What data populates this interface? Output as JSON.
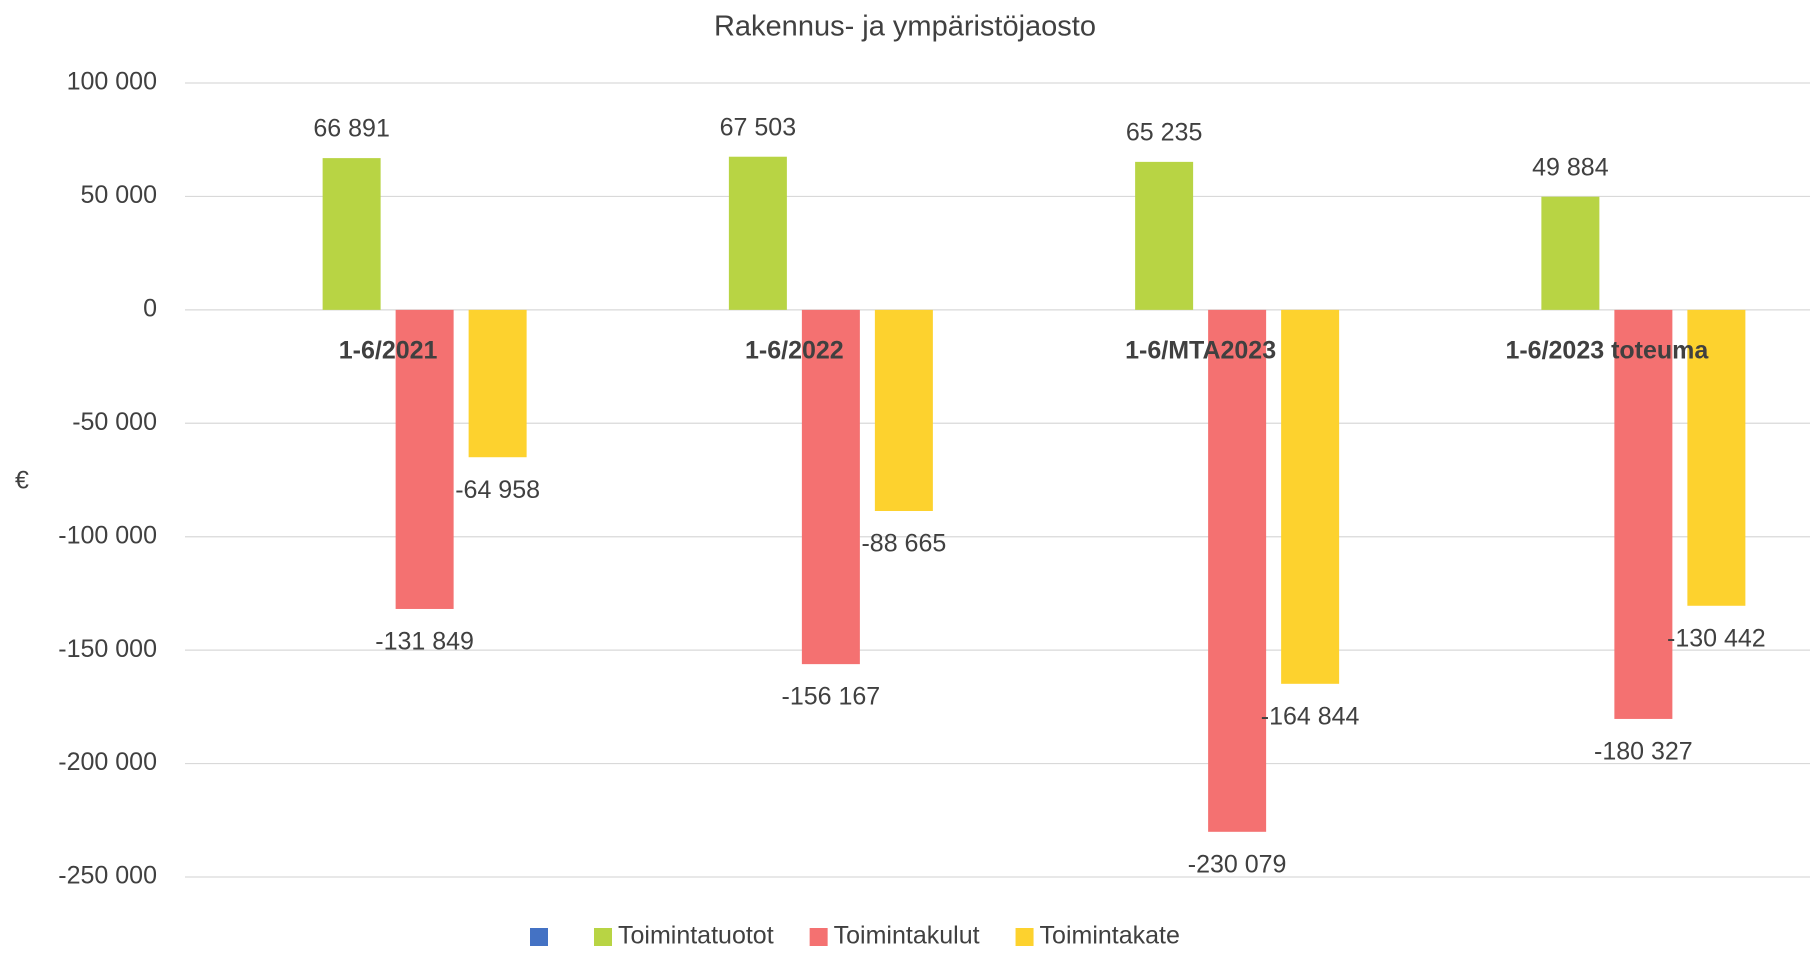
{
  "chart_data": {
    "type": "bar",
    "title": "Rakennus- ja ympäristöjaosto",
    "y_label": "€",
    "categories": [
      "1-6/2021",
      "1-6/2022",
      "1-6/MTA2023",
      "1-6/2023 toteuma"
    ],
    "series": [
      {
        "name": null,
        "color": "#4472c4",
        "values": [
          null,
          null,
          null,
          null
        ]
      },
      {
        "name": "Toimintatuotot",
        "color": "#b8d444",
        "values": [
          66891,
          67503,
          65235,
          49884
        ],
        "value_labels": [
          "66 891",
          "67 503",
          "65 235",
          "49 884"
        ]
      },
      {
        "name": "Toimintakulut",
        "color": "#f47171",
        "values": [
          -131849,
          -156167,
          -230079,
          -180327
        ],
        "value_labels": [
          "-131 849",
          "-156 167",
          "-230 079",
          "-180 327"
        ]
      },
      {
        "name": "Toimintakate",
        "color": "#fdd22e",
        "values": [
          -64958,
          -88665,
          -164844,
          -130442
        ],
        "value_labels": [
          "-64 958",
          "-88 665",
          "-164 844",
          "-130 442"
        ]
      }
    ],
    "ylim": [
      -250000,
      100000
    ],
    "yticks": [
      {
        "value": -250000,
        "label": "-250 000"
      },
      {
        "value": -200000,
        "label": "-200 000"
      },
      {
        "value": -150000,
        "label": "-150 000"
      },
      {
        "value": -100000,
        "label": "-100 000"
      },
      {
        "value": -50000,
        "label": "-50 000"
      },
      0,
      {
        "value": 50000,
        "label": "50 000"
      },
      {
        "value": 100000,
        "label": "100 000"
      }
    ],
    "grid": true,
    "legend": "bottom"
  }
}
